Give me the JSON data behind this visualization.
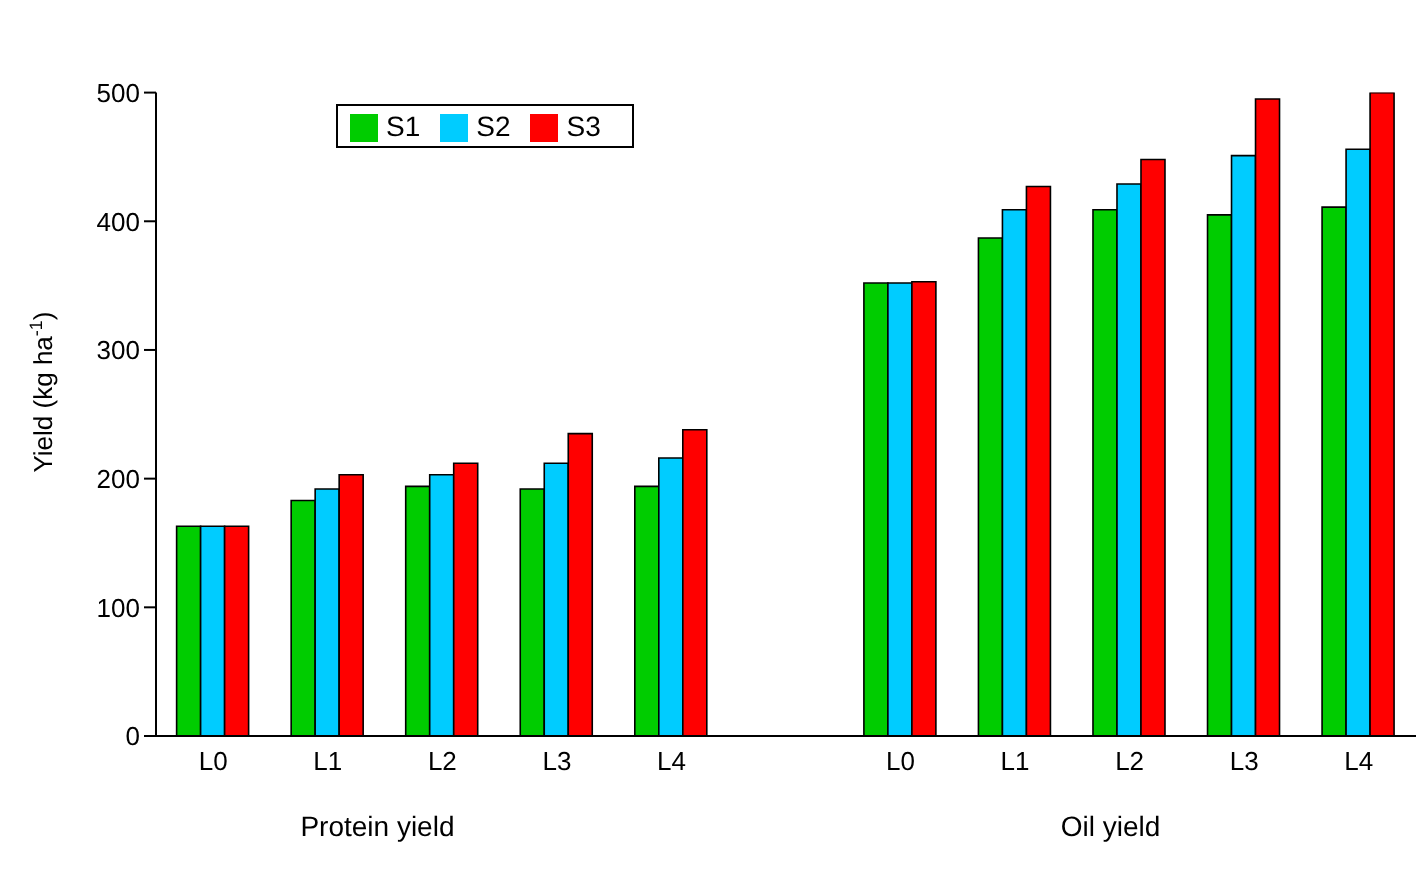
{
  "chart_data": {
    "type": "bar",
    "ylabel": "Yield (kg ha$^{-1}$)",
    "categories": [
      "L0",
      "L1",
      "L2",
      "L3",
      "L4",
      null,
      "L0",
      "L1",
      "L2",
      "L3",
      "L4"
    ],
    "series": [
      {
        "name": "S1",
        "color": "#00cc00",
        "values": [
          163,
          183,
          194,
          192,
          194,
          null,
          352,
          387,
          409,
          405,
          411
        ]
      },
      {
        "name": "S2",
        "color": "#00ccff",
        "values": [
          163,
          192,
          203,
          212,
          216,
          null,
          352,
          409,
          429,
          451,
          456
        ]
      },
      {
        "name": "S3",
        "color": "#ff0000",
        "values": [
          163,
          203,
          212,
          235,
          238,
          null,
          353,
          427,
          448,
          495,
          500
        ]
      }
    ],
    "ylim": [
      0,
      500
    ],
    "yticks": [
      0,
      100,
      200,
      300,
      400,
      500
    ],
    "grid": false,
    "legend": "top left",
    "annotations": [
      "Protein yield",
      "Oil yield"
    ]
  }
}
